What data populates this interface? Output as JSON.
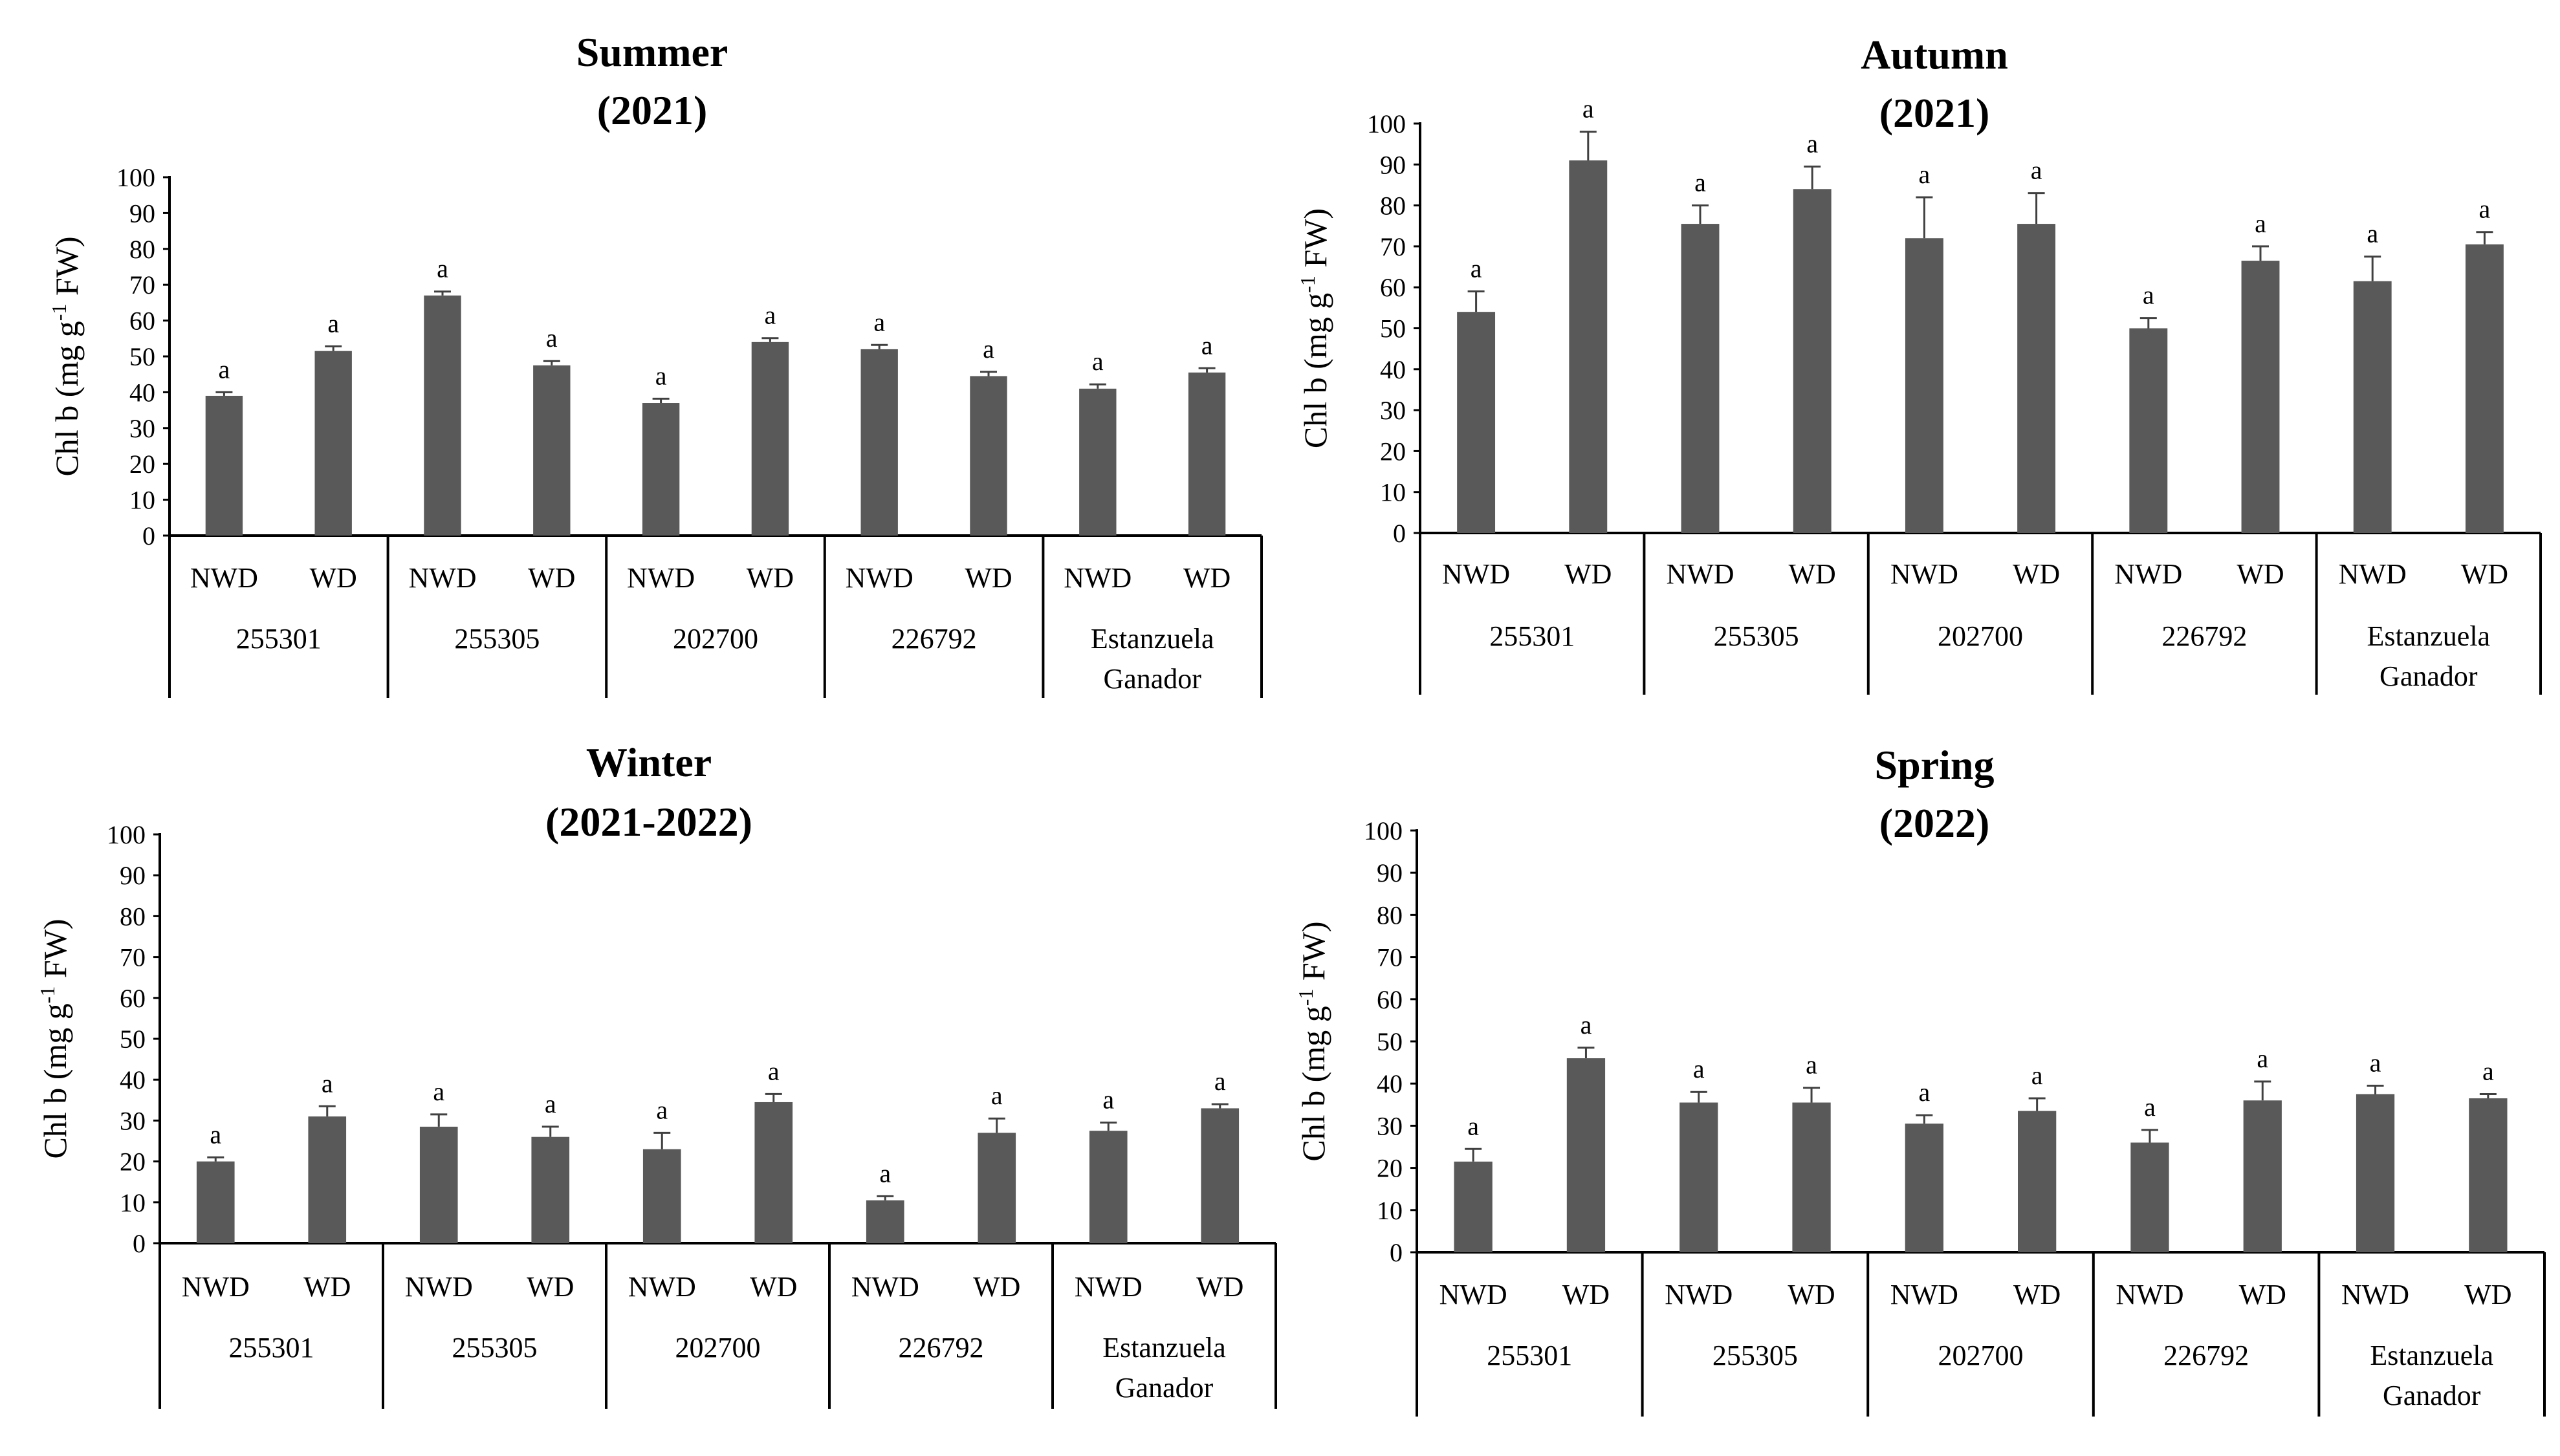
{
  "colors": {
    "bar": "#595959",
    "axis": "#000000",
    "error": "#404040"
  },
  "chart_data": [
    {
      "type": "bar",
      "title": "Summer",
      "subtitle": "(2021)",
      "ylabel_main": "Chl b (mg g",
      "ylabel_sup": "-1",
      "ylabel_tail": " FW)",
      "ylim": [
        0,
        100
      ],
      "yticks": [
        "0",
        "10",
        "20",
        "30",
        "40",
        "50",
        "60",
        "70",
        "80",
        "90",
        "100"
      ],
      "groups": [
        {
          "name": [
            "255301"
          ]
        },
        {
          "name": [
            "255305"
          ]
        },
        {
          "name": [
            "202700"
          ]
        },
        {
          "name": [
            "226792"
          ]
        },
        {
          "name": [
            "Estanzuela",
            "Ganador"
          ]
        }
      ],
      "treatments": [
        "NWD",
        "WD"
      ],
      "values": [
        39,
        51.5,
        67,
        47.5,
        37,
        54,
        52,
        44.5,
        41,
        45.5
      ],
      "errors": [
        1,
        1.3,
        1.1,
        1.2,
        1.2,
        1.1,
        1.2,
        1.2,
        1.2,
        1.2
      ],
      "labels": [
        "a",
        "a",
        "a",
        "a",
        "a",
        "a",
        "a",
        "a",
        "a",
        "a"
      ]
    },
    {
      "type": "bar",
      "title": "Autumn",
      "subtitle": "(2021)",
      "ylabel_main": "Chl b (mg g",
      "ylabel_sup": "-1",
      "ylabel_tail": " FW)",
      "ylim": [
        0,
        100
      ],
      "yticks": [
        "0",
        "10",
        "20",
        "30",
        "40",
        "50",
        "60",
        "70",
        "80",
        "90",
        "100"
      ],
      "groups": [
        {
          "name": [
            "255301"
          ]
        },
        {
          "name": [
            "255305"
          ]
        },
        {
          "name": [
            "202700"
          ]
        },
        {
          "name": [
            "226792"
          ]
        },
        {
          "name": [
            "Estanzuela",
            "Ganador"
          ]
        }
      ],
      "treatments": [
        "NWD",
        "WD"
      ],
      "values": [
        54,
        91,
        75.5,
        84,
        72,
        75.5,
        50,
        66.5,
        61.5,
        70.5
      ],
      "errors": [
        5,
        7,
        4.5,
        5.5,
        10,
        7.5,
        2.5,
        3.5,
        6,
        3
      ],
      "labels": [
        "a",
        "a",
        "a",
        "a",
        "a",
        "a",
        "a",
        "a",
        "a",
        "a"
      ]
    },
    {
      "type": "bar",
      "title": "Winter",
      "subtitle": "(2021-2022)",
      "ylabel_main": "Chl b (mg g",
      "ylabel_sup": "-1",
      "ylabel_tail": " FW)",
      "ylim": [
        0,
        100
      ],
      "yticks": [
        "0",
        "10",
        "20",
        "30",
        "40",
        "50",
        "60",
        "70",
        "80",
        "90",
        "100"
      ],
      "groups": [
        {
          "name": [
            "255301"
          ]
        },
        {
          "name": [
            "255305"
          ]
        },
        {
          "name": [
            "202700"
          ]
        },
        {
          "name": [
            "226792"
          ]
        },
        {
          "name": [
            "Estanzuela",
            "Ganador"
          ]
        }
      ],
      "treatments": [
        "NWD",
        "WD"
      ],
      "values": [
        20,
        31,
        28.5,
        26,
        23,
        34.5,
        10.5,
        27,
        27.5,
        33
      ],
      "errors": [
        1,
        2.5,
        3,
        2.5,
        4,
        2,
        1,
        3.5,
        2,
        1
      ],
      "labels": [
        "a",
        "a",
        "a",
        "a",
        "a",
        "a",
        "a",
        "a",
        "a",
        "a"
      ]
    },
    {
      "type": "bar",
      "title": "Spring",
      "subtitle": "(2022)",
      "ylabel_main": "Chl b (mg g",
      "ylabel_sup": "-1",
      "ylabel_tail": " FW)",
      "ylim": [
        0,
        100
      ],
      "yticks": [
        "0",
        "10",
        "20",
        "30",
        "40",
        "50",
        "60",
        "70",
        "80",
        "90",
        "100"
      ],
      "groups": [
        {
          "name": [
            "255301"
          ]
        },
        {
          "name": [
            "255305"
          ]
        },
        {
          "name": [
            "202700"
          ]
        },
        {
          "name": [
            "226792"
          ]
        },
        {
          "name": [
            "Estanzuela",
            "Ganador"
          ]
        }
      ],
      "treatments": [
        "NWD",
        "WD"
      ],
      "values": [
        21.5,
        46,
        35.5,
        35.5,
        30.5,
        33.5,
        26,
        36,
        37.5,
        36.5
      ],
      "errors": [
        3,
        2.5,
        2.5,
        3.5,
        2,
        3,
        3,
        4.5,
        2,
        1
      ],
      "labels": [
        "a",
        "a",
        "a",
        "a",
        "a",
        "a",
        "a",
        "a",
        "a",
        "a"
      ]
    }
  ]
}
